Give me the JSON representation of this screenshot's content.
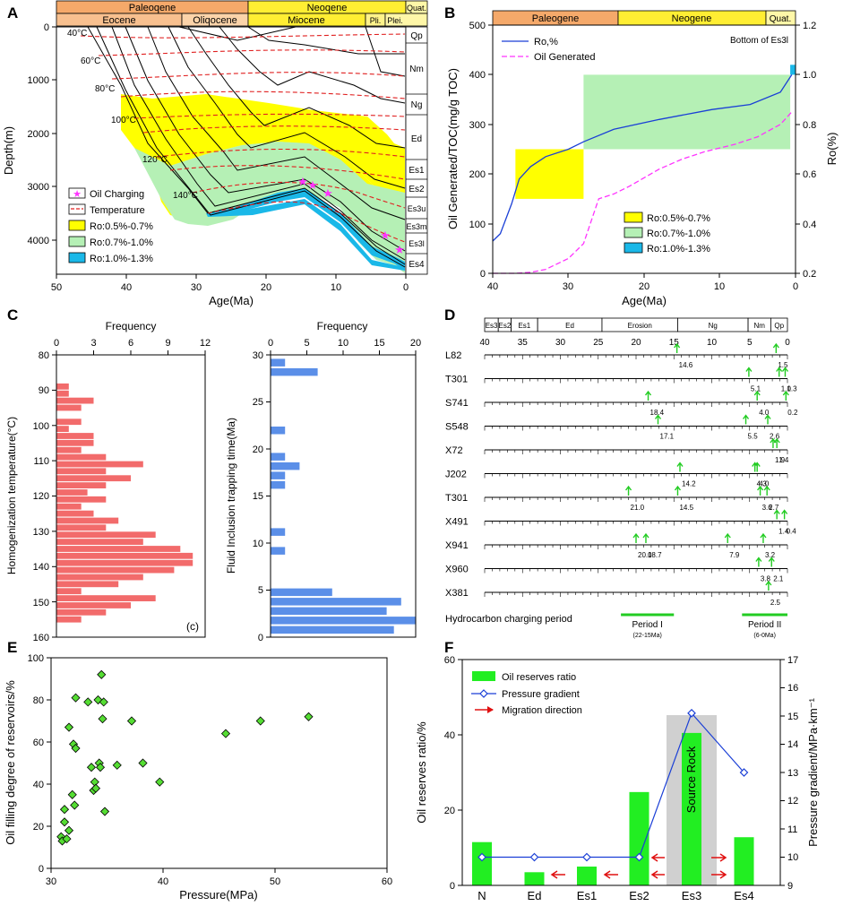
{
  "panels": {
    "A": {
      "label": "A",
      "periods": [
        "Paleoqene",
        "Neoqene",
        "Quat."
      ],
      "epochs": [
        "Eocene",
        "Oliqocene",
        "Miocene",
        "Pli.",
        "Plei."
      ],
      "ylabel": "Depth(m)",
      "xlabel": "Age(Ma)",
      "x_ticks": [
        "50",
        "40",
        "30",
        "20",
        "10",
        "0"
      ],
      "y_ticks": [
        "0",
        "1000",
        "2000",
        "3000",
        "4000"
      ],
      "formations": [
        "Qp",
        "Nm",
        "Ng",
        "Ed",
        "Es1",
        "Es2",
        "Es3u",
        "Es3m",
        "Es3l",
        "Es4"
      ],
      "temperatures": [
        "40°C",
        "60°C",
        "80°C",
        "100°C",
        "120°C",
        "140°C"
      ],
      "legend": [
        "Oil Charging",
        "Temperature",
        "Ro:0.5%-0.7%",
        "Ro:0.7%-1.0%",
        "Ro:1.0%-1.3%"
      ],
      "colors": {
        "ro1": "#ffff00",
        "ro2": "#b5f0b5",
        "ro3": "#1ab8e8",
        "temp": "#e02020",
        "star": "#ff33ff"
      }
    },
    "B": {
      "label": "B",
      "periods": [
        "Paleogene",
        "Neogene",
        "Quat."
      ],
      "ylabel_left": "Oil Generated/TOC(mg/g TOC)",
      "ylabel_right": "Ro(%)",
      "xlabel": "Age(Ma)",
      "x_ticks": [
        "40",
        "30",
        "20",
        "10",
        "0"
      ],
      "y_left_ticks": [
        "0",
        "100",
        "200",
        "300",
        "400",
        "500"
      ],
      "y_right_ticks": [
        "0.2",
        "0.4",
        "0.6",
        "0.8",
        "1.0",
        "1.2"
      ],
      "note": "Bottom of Es3l",
      "legend_lines": [
        "Ro,%",
        "Oil Generated"
      ],
      "legend_boxes": [
        "Ro:0.5%-0.7%",
        "Ro:0.7%-1.0%",
        "Ro:1.0%-1.3%"
      ],
      "ro_series": {
        "age": [
          40,
          39,
          37.5,
          36.5,
          35,
          33,
          30,
          28,
          24,
          18,
          11,
          6,
          2,
          0.5
        ],
        "ro": [
          0.33,
          0.36,
          0.48,
          0.58,
          0.63,
          0.67,
          0.7,
          0.73,
          0.78,
          0.82,
          0.86,
          0.88,
          0.93,
          1.0
        ]
      },
      "oil_series": {
        "age": [
          40,
          37,
          35,
          33,
          30,
          28,
          26,
          24,
          22,
          18,
          15,
          12,
          8,
          5,
          2,
          0.5
        ],
        "oil": [
          0,
          0,
          2,
          8,
          30,
          60,
          150,
          160,
          175,
          210,
          230,
          245,
          260,
          275,
          300,
          325
        ]
      },
      "ro_boxes": [
        {
          "name": "Ro:0.5%-0.7%",
          "age_from": 37,
          "age_to": 28,
          "oil_from": 150,
          "oil_to": 250
        },
        {
          "name": "Ro:0.7%-1.0%",
          "age_from": 28,
          "age_to": 0.7,
          "oil_from": 250,
          "oil_to": 400
        },
        {
          "name": "Ro:1.0%-1.3%",
          "age_from": 0.7,
          "age_to": 0,
          "oil_from": 400,
          "oil_to": 420
        }
      ]
    },
    "C": {
      "label": "C",
      "left": {
        "title": "Frequency",
        "ylabel": "Homogenization temperature(°C)",
        "x_ticks": [
          "0",
          "3",
          "6",
          "9",
          "12"
        ],
        "y_ticks": [
          "80",
          "90",
          "100",
          "110",
          "120",
          "130",
          "140",
          "150",
          "160"
        ],
        "corner": "(c)",
        "bins": [
          {
            "t": 89,
            "f": 1
          },
          {
            "t": 91,
            "f": 1
          },
          {
            "t": 93,
            "f": 3
          },
          {
            "t": 95,
            "f": 2
          },
          {
            "t": 99,
            "f": 2
          },
          {
            "t": 101,
            "f": 1
          },
          {
            "t": 103,
            "f": 3
          },
          {
            "t": 105,
            "f": 3
          },
          {
            "t": 107,
            "f": 2
          },
          {
            "t": 109,
            "f": 4
          },
          {
            "t": 111,
            "f": 7
          },
          {
            "t": 113,
            "f": 4
          },
          {
            "t": 115,
            "f": 6
          },
          {
            "t": 117,
            "f": 4
          },
          {
            "t": 119,
            "f": 2.5
          },
          {
            "t": 121,
            "f": 4
          },
          {
            "t": 123,
            "f": 2
          },
          {
            "t": 125,
            "f": 3
          },
          {
            "t": 127,
            "f": 5
          },
          {
            "t": 129,
            "f": 4
          },
          {
            "t": 131,
            "f": 8
          },
          {
            "t": 133,
            "f": 7
          },
          {
            "t": 135,
            "f": 10
          },
          {
            "t": 137,
            "f": 11
          },
          {
            "t": 139,
            "f": 11
          },
          {
            "t": 141,
            "f": 9.5
          },
          {
            "t": 143,
            "f": 7
          },
          {
            "t": 145,
            "f": 5
          },
          {
            "t": 147,
            "f": 2
          },
          {
            "t": 149,
            "f": 8
          },
          {
            "t": 151,
            "f": 6
          },
          {
            "t": 153,
            "f": 4
          },
          {
            "t": 155,
            "f": 2
          }
        ]
      },
      "right": {
        "title": "Frequency",
        "ylabel": "Fluid Inclusion trapping time(Ma)",
        "x_ticks": [
          "0",
          "5",
          "10",
          "15",
          "20"
        ],
        "y_ticks": [
          "0",
          "5",
          "10",
          "15",
          "20",
          "25",
          "30"
        ],
        "bins": [
          {
            "t": 29.2,
            "f": 2
          },
          {
            "t": 28.2,
            "f": 6.5
          },
          {
            "t": 22.0,
            "f": 2
          },
          {
            "t": 19.2,
            "f": 2
          },
          {
            "t": 18.2,
            "f": 4
          },
          {
            "t": 17.2,
            "f": 2
          },
          {
            "t": 16.2,
            "f": 2
          },
          {
            "t": 11.2,
            "f": 2
          },
          {
            "t": 9.2,
            "f": 2
          },
          {
            "t": 4.8,
            "f": 8.5
          },
          {
            "t": 3.8,
            "f": 18
          },
          {
            "t": 2.8,
            "f": 16
          },
          {
            "t": 1.8,
            "f": 20
          },
          {
            "t": 0.8,
            "f": 17
          }
        ]
      }
    },
    "D": {
      "label": "D",
      "strat": [
        {
          "name": "Es3",
          "from": 40,
          "to": 38.2
        },
        {
          "name": "Es2",
          "from": 38.2,
          "to": 36.5
        },
        {
          "name": "Es1",
          "from": 36.5,
          "to": 33
        },
        {
          "name": "Ed",
          "from": 33,
          "to": 24.5
        },
        {
          "name": "Erosion",
          "from": 24.5,
          "to": 14.5
        },
        {
          "name": "Ng",
          "from": 14.5,
          "to": 5.2
        },
        {
          "name": "Nm",
          "from": 5.2,
          "to": 2.2
        },
        {
          "name": "Qp",
          "from": 2.2,
          "to": 0
        }
      ],
      "x_ticks": [
        "40",
        "35",
        "30",
        "25",
        "20",
        "15",
        "10",
        "5",
        "0"
      ],
      "wells": [
        {
          "name": "L82",
          "charges": [
            {
              "age": 14.6,
              "label": "14.6"
            },
            {
              "age": 1.5,
              "label": "1.5"
            }
          ]
        },
        {
          "name": "T301",
          "charges": [
            {
              "age": 5.1,
              "label": "5.1"
            },
            {
              "age": 1.1,
              "label": "1.1"
            },
            {
              "age": 0.3,
              "label": "0.3"
            }
          ]
        },
        {
          "name": "S741",
          "charges": [
            {
              "age": 18.4,
              "label": "18.4"
            },
            {
              "age": 4.0,
              "label": "4.0"
            },
            {
              "age": 0.2,
              "label": "0.2"
            }
          ]
        },
        {
          "name": "S548",
          "charges": [
            {
              "age": 17.1,
              "label": "17.1"
            },
            {
              "age": 5.5,
              "label": "5.5"
            },
            {
              "age": 2.6,
              "label": "2.6"
            }
          ]
        },
        {
          "name": "X72",
          "charges": [
            {
              "age": 1.9,
              "label": "1.9"
            },
            {
              "age": 1.4,
              "label": "1.4"
            }
          ]
        },
        {
          "name": "J202",
          "charges": [
            {
              "age": 14.2,
              "label": "14.2"
            },
            {
              "age": 4.3,
              "label": "4.3"
            },
            {
              "age": 4.0,
              "label": "4.0"
            }
          ]
        },
        {
          "name": "T301",
          "charges": [
            {
              "age": 21.0,
              "label": "21.0"
            },
            {
              "age": 14.5,
              "label": "14.5"
            },
            {
              "age": 3.6,
              "label": "3.6"
            },
            {
              "age": 2.7,
              "label": "2.7"
            }
          ]
        },
        {
          "name": "X491",
          "charges": [
            {
              "age": 1.4,
              "label": "1.4"
            },
            {
              "age": 0.4,
              "label": "0.4"
            }
          ]
        },
        {
          "name": "X941",
          "charges": [
            {
              "age": 20.0,
              "label": "20.0"
            },
            {
              "age": 18.7,
              "label": "18.7"
            },
            {
              "age": 7.9,
              "label": "7.9"
            },
            {
              "age": 3.2,
              "label": "3.2"
            }
          ]
        },
        {
          "name": "X960",
          "charges": [
            {
              "age": 3.8,
              "label": "3.8"
            },
            {
              "age": 2.1,
              "label": "2.1"
            }
          ]
        },
        {
          "name": "X381",
          "charges": [
            {
              "age": 2.5,
              "label": "2.5"
            }
          ]
        }
      ],
      "period_label": "Hydrocarbon charging period",
      "periods": [
        {
          "name": "Period I",
          "range": "(22-15Ma)",
          "from": 22,
          "to": 15
        },
        {
          "name": "Period II",
          "range": "(6-0Ma)",
          "from": 6,
          "to": 0
        }
      ]
    },
    "E": {
      "label": "E",
      "xlabel": "Pressure(MPa)",
      "ylabel": "Oil filling degree of reservoirs/%",
      "x_ticks": [
        "30",
        "40",
        "50",
        "60"
      ],
      "y_ticks": [
        "0",
        "20",
        "40",
        "60",
        "80",
        "100"
      ],
      "points": [
        {
          "p": 30.9,
          "f": 15
        },
        {
          "p": 31.0,
          "f": 13
        },
        {
          "p": 31.2,
          "f": 28
        },
        {
          "p": 31.2,
          "f": 22
        },
        {
          "p": 31.4,
          "f": 14
        },
        {
          "p": 31.6,
          "f": 18
        },
        {
          "p": 31.6,
          "f": 67
        },
        {
          "p": 31.9,
          "f": 35
        },
        {
          "p": 32.0,
          "f": 59
        },
        {
          "p": 32.1,
          "f": 30
        },
        {
          "p": 32.2,
          "f": 81
        },
        {
          "p": 32.2,
          "f": 57
        },
        {
          "p": 33.3,
          "f": 79
        },
        {
          "p": 33.6,
          "f": 48
        },
        {
          "p": 33.8,
          "f": 37
        },
        {
          "p": 33.9,
          "f": 41
        },
        {
          "p": 34.0,
          "f": 38
        },
        {
          "p": 34.2,
          "f": 80
        },
        {
          "p": 34.3,
          "f": 50
        },
        {
          "p": 34.4,
          "f": 48
        },
        {
          "p": 34.5,
          "f": 92
        },
        {
          "p": 34.6,
          "f": 71
        },
        {
          "p": 34.7,
          "f": 79
        },
        {
          "p": 34.8,
          "f": 27
        },
        {
          "p": 35.9,
          "f": 49
        },
        {
          "p": 37.2,
          "f": 70
        },
        {
          "p": 38.2,
          "f": 50
        },
        {
          "p": 39.7,
          "f": 41
        },
        {
          "p": 45.6,
          "f": 64
        },
        {
          "p": 48.7,
          "f": 70
        },
        {
          "p": 53.0,
          "f": 72
        }
      ]
    },
    "F": {
      "label": "F",
      "ylabel_left": "Oil reserves ratio/%",
      "ylabel_right": "Pressure gradient/MPa·km⁻¹",
      "categories": [
        "N",
        "Ed",
        "Es1",
        "Es2",
        "Es3",
        "Es4"
      ],
      "reserves": [
        11.5,
        3.5,
        5.0,
        24.8,
        40.5,
        12.8
      ],
      "gradient": [
        10.0,
        10.0,
        10.0,
        10.0,
        15.1,
        13.0
      ],
      "y_left_ticks": [
        "0",
        "20",
        "40",
        "60"
      ],
      "y_right_ticks": [
        "9",
        "10",
        "11",
        "12",
        "13",
        "14",
        "15",
        "16",
        "17"
      ],
      "legend": [
        "Oil reserves ratio",
        "Pressure gradient",
        "Migration direction"
      ],
      "source_rock": "Source Rock"
    }
  }
}
